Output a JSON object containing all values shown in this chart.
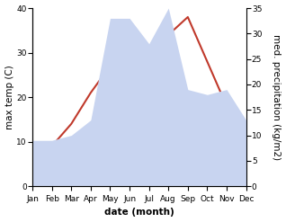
{
  "months": [
    "Jan",
    "Feb",
    "Mar",
    "Apr",
    "May",
    "Jun",
    "Jul",
    "Aug",
    "Sep",
    "Oct",
    "Nov",
    "Dec"
  ],
  "temperature": [
    7,
    9,
    14,
    21,
    27,
    31,
    30,
    34,
    38,
    28,
    18,
    11
  ],
  "precipitation": [
    9,
    9,
    10,
    13,
    33,
    33,
    28,
    35,
    19,
    18,
    19,
    13
  ],
  "temp_color": "#c0392b",
  "precip_color_fill": "#c8d4f0",
  "temp_ylim": [
    0,
    40
  ],
  "precip_ylim": [
    0,
    35
  ],
  "temp_yticks": [
    0,
    10,
    20,
    30,
    40
  ],
  "precip_yticks": [
    0,
    5,
    10,
    15,
    20,
    25,
    30,
    35
  ],
  "xlabel": "date (month)",
  "ylabel_left": "max temp (C)",
  "ylabel_right": "med. precipitation (kg/m2)",
  "background_color": "#ffffff",
  "label_fontsize": 7.5,
  "tick_fontsize": 6.5
}
